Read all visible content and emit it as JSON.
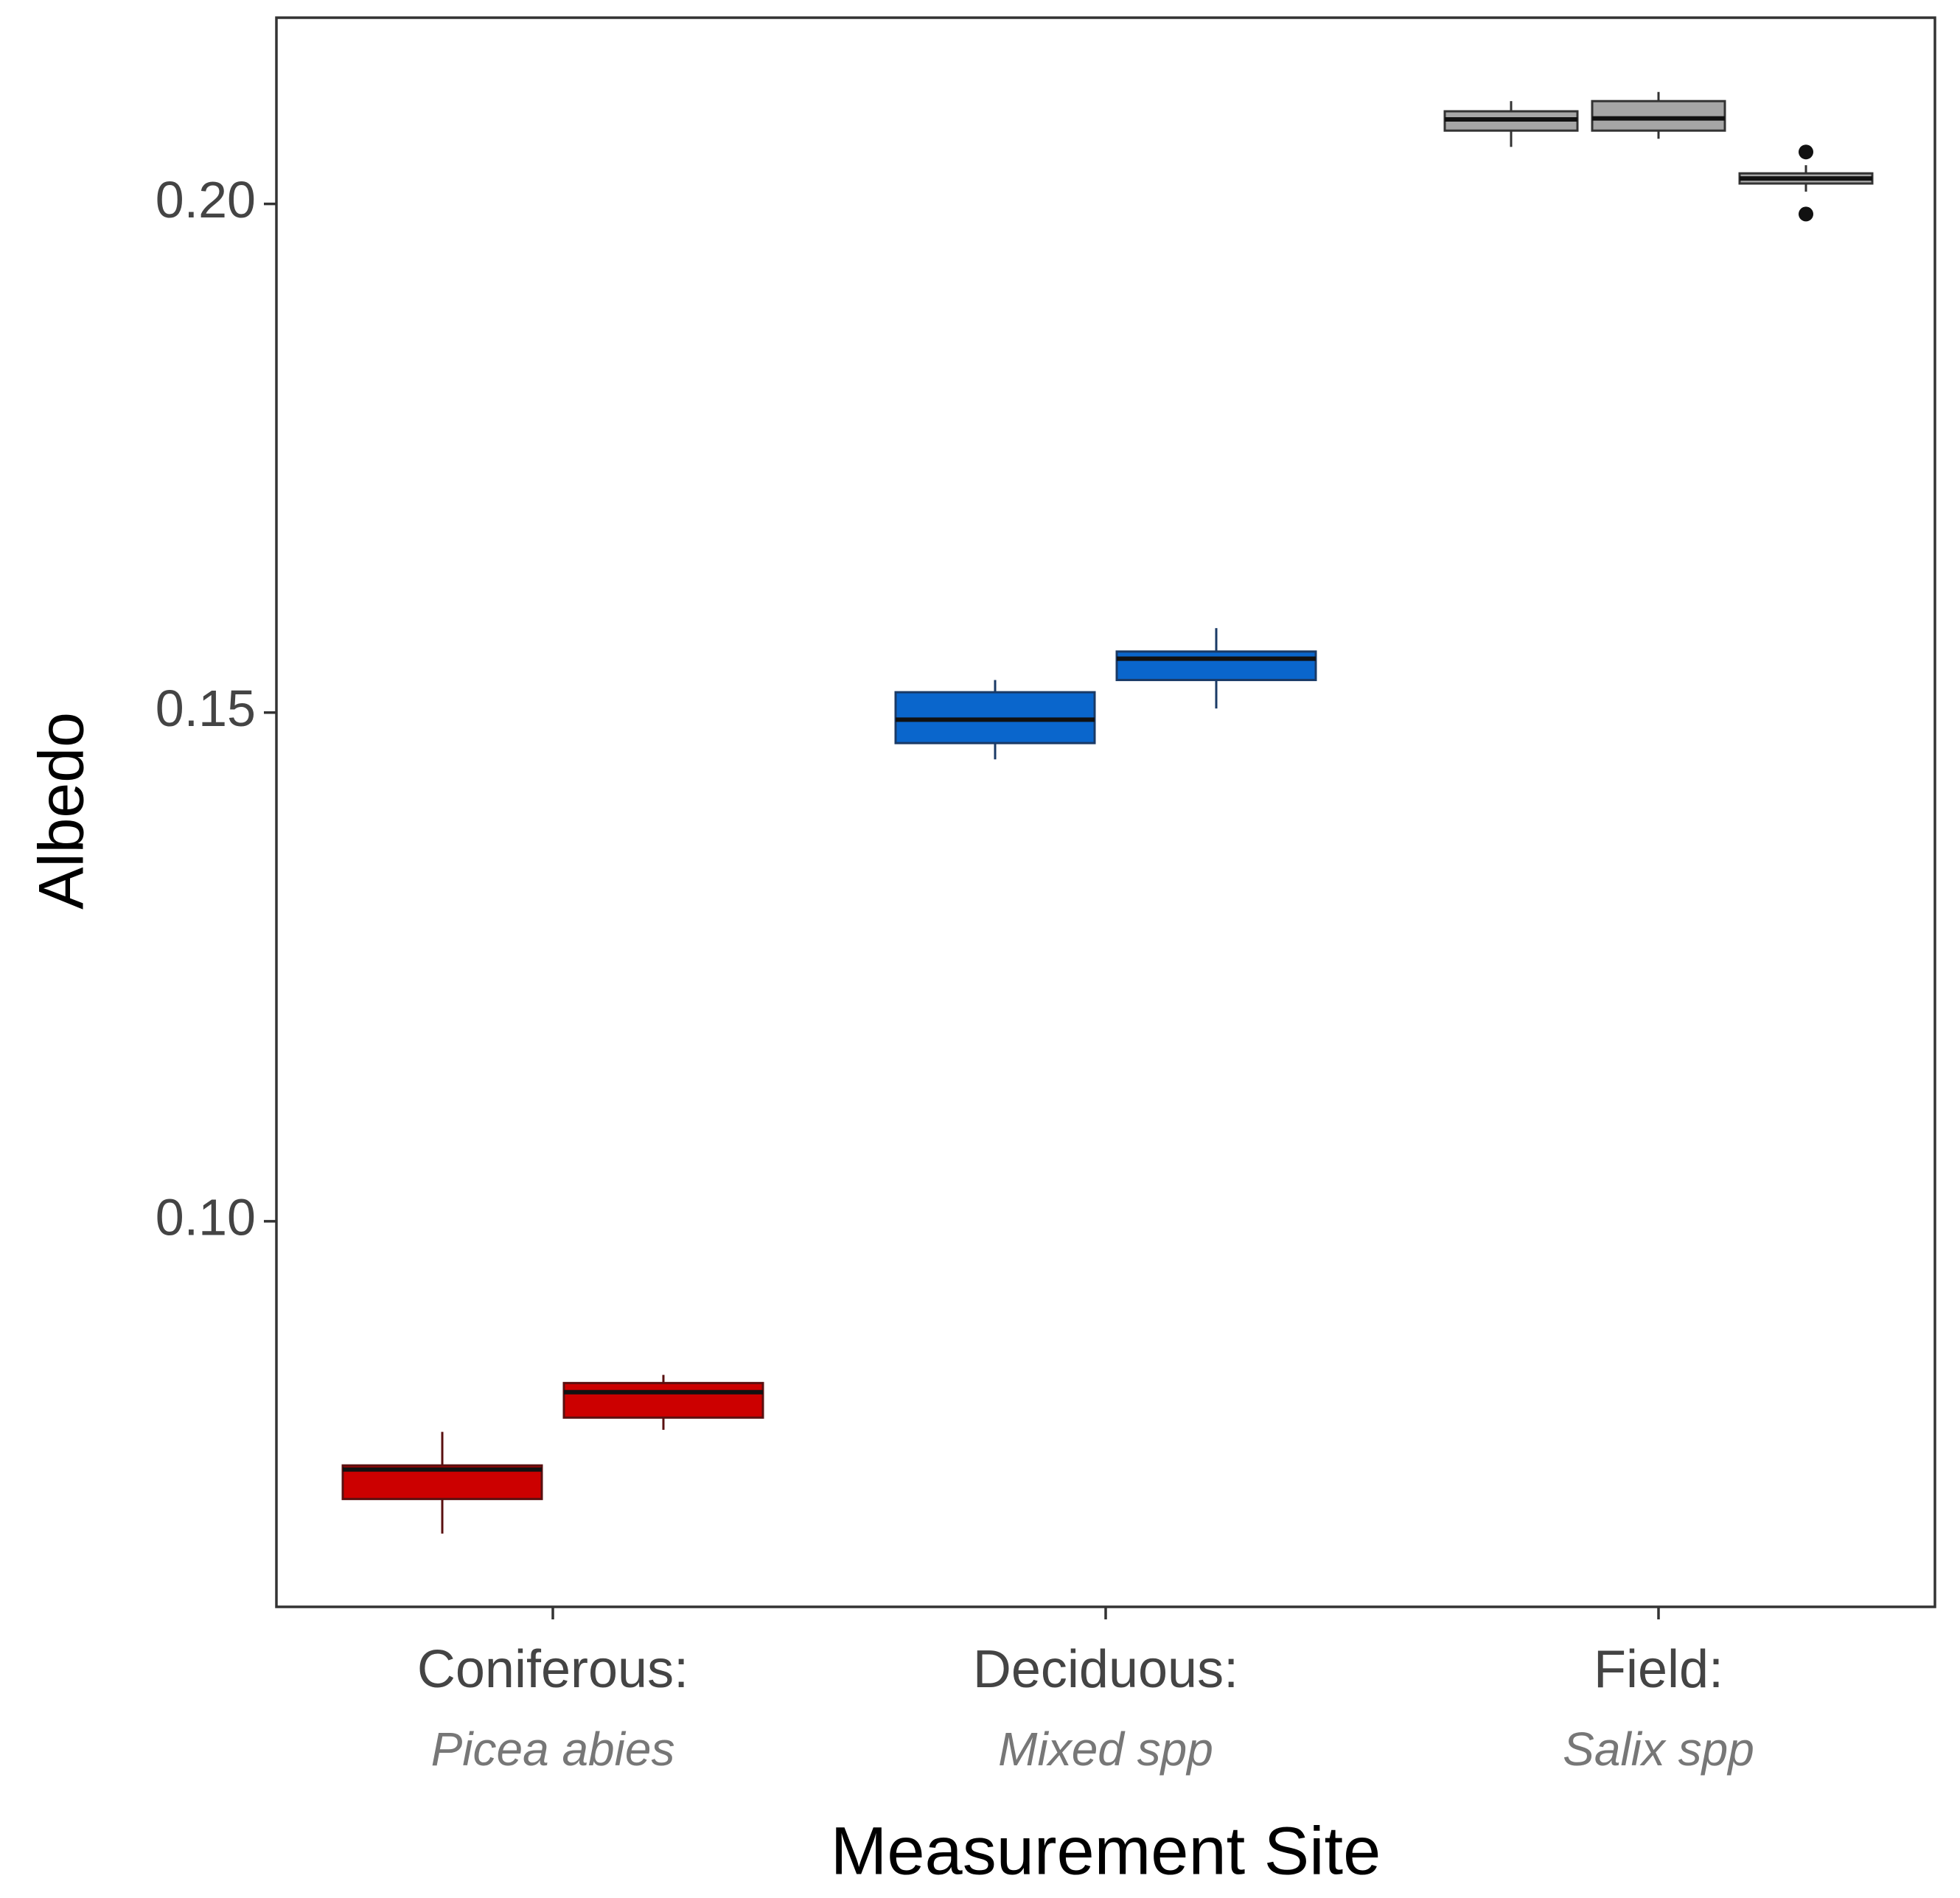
{
  "chart_data": {
    "type": "box",
    "x_label": "Measurement Site",
    "y_label": "Albedo",
    "categories": [
      "Coniferous:",
      "Deciduous:",
      "Field:"
    ],
    "category_sublabels": [
      "Picea abies",
      "Mixed spp",
      "Salix spp"
    ],
    "groups": [
      {
        "color": "#cc0000",
        "line_color": "#5a1010",
        "boxes": [
          {
            "min": 0.0693,
            "q1": 0.0727,
            "median": 0.0756,
            "q3": 0.076,
            "max": 0.0793,
            "outliers": []
          },
          {
            "min": 0.0795,
            "q1": 0.0807,
            "median": 0.0832,
            "q3": 0.0841,
            "max": 0.0849,
            "outliers": []
          }
        ]
      },
      {
        "color": "#0a66cc",
        "line_color": "#1a3a66",
        "boxes": [
          {
            "min": 0.1454,
            "q1": 0.147,
            "median": 0.1493,
            "q3": 0.152,
            "max": 0.1532,
            "outliers": []
          },
          {
            "min": 0.1504,
            "q1": 0.1532,
            "median": 0.1553,
            "q3": 0.156,
            "max": 0.1583,
            "outliers": []
          }
        ]
      },
      {
        "color": "#a6a6a6",
        "line_color": "#333333",
        "boxes": [
          {
            "min": 0.2056,
            "q1": 0.2072,
            "median": 0.2083,
            "q3": 0.2091,
            "max": 0.2101,
            "outliers": []
          },
          {
            "min": 0.2064,
            "q1": 0.2072,
            "median": 0.2084,
            "q3": 0.2101,
            "max": 0.211,
            "outliers": []
          },
          {
            "min": 0.2012,
            "q1": 0.202,
            "median": 0.2025,
            "q3": 0.203,
            "max": 0.2038,
            "outliers": [
              0.2051,
              0.199
            ]
          }
        ]
      }
    ],
    "ylim": [
      0.0621,
      0.2183
    ],
    "yticks": [
      {
        "value": 0.1,
        "label": "0.10"
      },
      {
        "value": 0.15,
        "label": "0.15"
      },
      {
        "value": 0.2,
        "label": "0.20"
      }
    ],
    "grid": false
  }
}
